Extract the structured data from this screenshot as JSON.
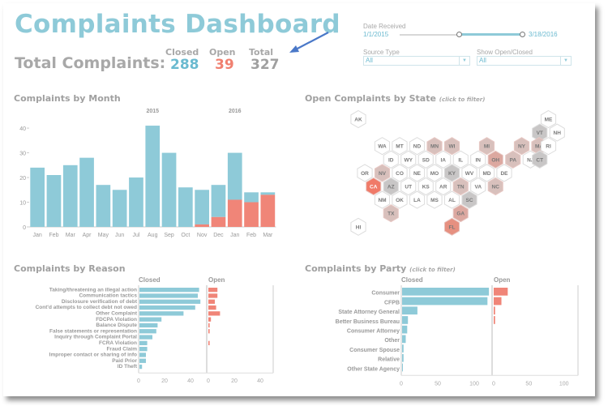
{
  "header": {
    "title": "Complaints Dashboard",
    "total_label": "Total Complaints:",
    "kpis": [
      {
        "label": "Closed",
        "value": "288",
        "color": "#6bbad0"
      },
      {
        "label": "Open",
        "value": "39",
        "color": "#f08070"
      },
      {
        "label": "Total",
        "value": "327",
        "color": "#a0a0a0"
      }
    ]
  },
  "filters": {
    "date_label": "Date Received",
    "date_start": "1/1/2015",
    "date_end": "3/18/2016",
    "slider_range": [
      0.48,
      1.0
    ],
    "source_label": "Source Type",
    "source_value": "All",
    "openclosed_label": "Show Open/Closed",
    "openclosed_value": "All"
  },
  "colors": {
    "closed": "#8ecad8",
    "open": "#f08578",
    "text": "#a0a0a0"
  },
  "sections": {
    "month": "Complaints by Month",
    "state": "Open Complaints by State",
    "state_hint": "(click to filter)",
    "reason": "Complaints by Reason",
    "party": "Complaints by Party",
    "party_hint": "(click to filter)"
  },
  "chart_data": [
    {
      "type": "bar",
      "title": "Complaints by Month",
      "stacked": true,
      "year_labels": [
        {
          "label": "2015",
          "at": "Aug"
        },
        {
          "label": "2016",
          "at": "Jan-2016"
        }
      ],
      "categories": [
        "Jan",
        "Feb",
        "Mar",
        "Apr",
        "May",
        "Jun",
        "Jul",
        "Aug",
        "Sep",
        "Oct",
        "Nov",
        "Dec",
        "Jan",
        "Feb",
        "Mar"
      ],
      "series": [
        {
          "name": "Open",
          "values": [
            0,
            0,
            0,
            0,
            0,
            0,
            0,
            0,
            0,
            0,
            1,
            4,
            11,
            10,
            13
          ]
        },
        {
          "name": "Closed",
          "values": [
            24,
            21,
            25,
            28,
            17,
            15,
            20,
            41,
            30,
            16,
            14,
            13,
            19,
            4,
            1
          ]
        }
      ],
      "yticks": [
        0,
        10,
        20,
        30,
        40
      ],
      "ylim": [
        0,
        42
      ],
      "xlabel": "",
      "ylabel": ""
    },
    {
      "type": "heatmap",
      "title": "Open Complaints by State",
      "subtitle": "(click to filter)",
      "cells": [
        {
          "s": "AK",
          "r": 0,
          "c": 0,
          "v": 0
        },
        {
          "s": "ME",
          "r": 0,
          "c": 11,
          "v": 0
        },
        {
          "s": "VT",
          "r": 1,
          "c": 10,
          "v": -1
        },
        {
          "s": "NH",
          "r": 1,
          "c": 11,
          "v": 0
        },
        {
          "s": "WA",
          "r": 2,
          "c": 1,
          "v": 0
        },
        {
          "s": "MT",
          "r": 2,
          "c": 2,
          "v": 0
        },
        {
          "s": "ND",
          "r": 2,
          "c": 3,
          "v": 0
        },
        {
          "s": "MN",
          "r": 2,
          "c": 4,
          "v": 1
        },
        {
          "s": "WI",
          "r": 2,
          "c": 5,
          "v": 1
        },
        {
          "s": "MI",
          "r": 2,
          "c": 7,
          "v": 1
        },
        {
          "s": "NY",
          "r": 2,
          "c": 9,
          "v": 1
        },
        {
          "s": "MA",
          "r": 2,
          "c": 10,
          "v": 1
        },
        {
          "s": "RI",
          "r": 2,
          "c": 11,
          "v": 0
        },
        {
          "s": "ID",
          "r": 3,
          "c": 1,
          "v": 0
        },
        {
          "s": "WY",
          "r": 3,
          "c": 2,
          "v": 0
        },
        {
          "s": "SD",
          "r": 3,
          "c": 3,
          "v": 0
        },
        {
          "s": "IA",
          "r": 3,
          "c": 4,
          "v": 0
        },
        {
          "s": "IL",
          "r": 3,
          "c": 5,
          "v": 0
        },
        {
          "s": "IN",
          "r": 3,
          "c": 6,
          "v": 0
        },
        {
          "s": "OH",
          "r": 3,
          "c": 7,
          "v": 2
        },
        {
          "s": "PA",
          "r": 3,
          "c": 8,
          "v": 1
        },
        {
          "s": "NJ",
          "r": 3,
          "c": 9,
          "v": 0
        },
        {
          "s": "CT",
          "r": 3,
          "c": 10,
          "v": -1
        },
        {
          "s": "OR",
          "r": 4,
          "c": 0,
          "v": 0
        },
        {
          "s": "NV",
          "r": 4,
          "c": 1,
          "v": 1
        },
        {
          "s": "CO",
          "r": 4,
          "c": 2,
          "v": 0
        },
        {
          "s": "NE",
          "r": 4,
          "c": 3,
          "v": 0
        },
        {
          "s": "MO",
          "r": 4,
          "c": 4,
          "v": 0
        },
        {
          "s": "KY",
          "r": 4,
          "c": 5,
          "v": -1
        },
        {
          "s": "WV",
          "r": 4,
          "c": 6,
          "v": 0
        },
        {
          "s": "MD",
          "r": 4,
          "c": 7,
          "v": 0
        },
        {
          "s": "DE",
          "r": 4,
          "c": 8,
          "v": 0
        },
        {
          "s": "CA",
          "r": 5,
          "c": 0,
          "v": 5
        },
        {
          "s": "AZ",
          "r": 5,
          "c": 1,
          "v": -1
        },
        {
          "s": "UT",
          "r": 5,
          "c": 2,
          "v": 0
        },
        {
          "s": "KS",
          "r": 5,
          "c": 3,
          "v": 0
        },
        {
          "s": "AR",
          "r": 5,
          "c": 4,
          "v": 0
        },
        {
          "s": "TN",
          "r": 5,
          "c": 5,
          "v": 1
        },
        {
          "s": "VA",
          "r": 5,
          "c": 6,
          "v": 0
        },
        {
          "s": "NC",
          "r": 5,
          "c": 7,
          "v": 1
        },
        {
          "s": "NM",
          "r": 6,
          "c": 1,
          "v": 0
        },
        {
          "s": "OK",
          "r": 6,
          "c": 2,
          "v": 0
        },
        {
          "s": "LA",
          "r": 6,
          "c": 3,
          "v": 0
        },
        {
          "s": "MS",
          "r": 6,
          "c": 4,
          "v": 0
        },
        {
          "s": "AL",
          "r": 6,
          "c": 5,
          "v": 0
        },
        {
          "s": "SC",
          "r": 6,
          "c": 6,
          "v": -1
        },
        {
          "s": "TX",
          "r": 7,
          "c": 1,
          "v": 1
        },
        {
          "s": "GA",
          "r": 7,
          "c": 5,
          "v": 2
        },
        {
          "s": "HI",
          "r": 8,
          "c": 0,
          "v": 0
        },
        {
          "s": "FL",
          "r": 8,
          "c": 5,
          "v": 3
        }
      ]
    },
    {
      "type": "bar",
      "orientation": "horizontal",
      "title": "Complaints by Reason",
      "categories": [
        "Taking/threatening an illegal action",
        "Communication tactics",
        "Disclosure verification of debt",
        "Cont'd attempts to collect debt not owed",
        "Other Complaint",
        "FDCPA Violation",
        "Balance Dispute",
        "False statements or representation",
        "Inquiry through Complaint Portal",
        "FCRA Violation",
        "Fraud Claim",
        "Improper contact or sharing of info",
        "Paid Prior",
        "ID Theft"
      ],
      "series": [
        {
          "name": "Closed",
          "values": [
            46,
            45,
            47,
            43,
            34,
            17,
            14,
            13,
            10,
            6,
            6,
            5,
            5,
            2
          ]
        },
        {
          "name": "Open",
          "values": [
            7,
            7,
            5,
            6,
            9,
            2,
            1,
            1,
            0,
            1,
            0,
            0,
            0,
            0
          ]
        }
      ],
      "xticks": [
        0,
        20,
        40
      ],
      "xlim": [
        0,
        50
      ]
    },
    {
      "type": "bar",
      "orientation": "horizontal",
      "title": "Complaints by Party",
      "subtitle": "(click to filter)",
      "categories": [
        "Consumer",
        "CFPB",
        "State Attorney General",
        "Better Business Bureau",
        "Consumer Attorney",
        "Other",
        "Consumer Spouse",
        "Relative",
        "Other State Agency"
      ],
      "series": [
        {
          "name": "Closed",
          "values": [
            119,
            117,
            21,
            8,
            7,
            5,
            2,
            2,
            1
          ]
        },
        {
          "name": "Open",
          "values": [
            20,
            11,
            2,
            2,
            0,
            0,
            0,
            0,
            0
          ]
        }
      ],
      "xticks": [
        0,
        50,
        100
      ],
      "xlim": [
        0,
        120
      ]
    }
  ]
}
